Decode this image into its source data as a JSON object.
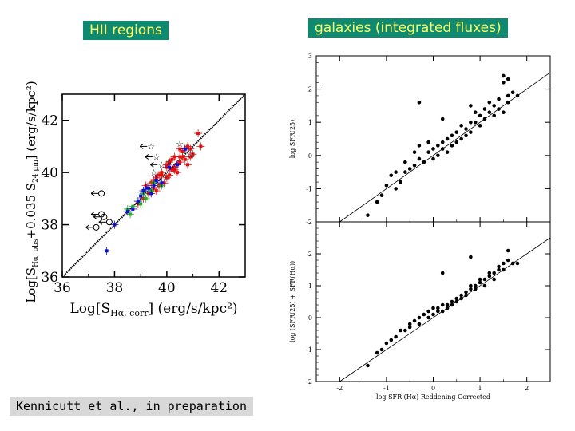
{
  "labels": {
    "hii": "HII regions",
    "galaxies": "galaxies (integrated fluxes)",
    "credit": "Kennicutt et al., in preparation"
  },
  "colors": {
    "label_bg": "#0e8a70",
    "label_text": "#ffff66",
    "credit_bg": "#d8d8d8",
    "red": "#e01010",
    "green": "#20b020",
    "blue": "#1010c0"
  },
  "chart_data": [
    {
      "type": "scatter",
      "title": "",
      "xlabel": "Log[S",
      "xlabel_sub": "Hα, corr",
      "xlabel_units": "] (erg/s/kpc²)",
      "ylabel": "Log[S",
      "ylabel_sub1": "Hα, obs",
      "ylabel_mid": "+0.035 S",
      "ylabel_sub2": "24 μm",
      "ylabel_units": "] (erg/s/kpc²)",
      "xlim": [
        36,
        43
      ],
      "ylim": [
        36,
        43
      ],
      "xticks": [
        "36",
        "38",
        "40",
        "42"
      ],
      "yticks": [
        "36",
        "38",
        "40",
        "42"
      ],
      "line": {
        "x": [
          36,
          43
        ],
        "y": [
          36,
          43
        ]
      },
      "series": [
        {
          "color": "red",
          "x": [
            40.5,
            40.3,
            40.7,
            40.0,
            39.8,
            40.6,
            41.0,
            40.2,
            39.6,
            40.9,
            40.4,
            39.5,
            40.8,
            40.1,
            39.9,
            40.5,
            41.2,
            39.7,
            40.3,
            40.6,
            39.4,
            40.0,
            40.7,
            39.2,
            40.4,
            39.8,
            40.9,
            39.6,
            40.2,
            39.3,
            40.5,
            41.3,
            39.1,
            40.8,
            39.7,
            40.1,
            38.9,
            40.3,
            39.5,
            40.0
          ],
          "y": [
            40.6,
            40.2,
            40.5,
            40.3,
            39.9,
            40.8,
            40.7,
            40.5,
            39.8,
            40.9,
            40.0,
            39.4,
            41.0,
            40.4,
            39.6,
            40.4,
            41.5,
            39.9,
            40.1,
            40.6,
            39.6,
            39.8,
            40.9,
            39.5,
            40.3,
            40.0,
            40.6,
            39.3,
            40.1,
            39.2,
            40.9,
            41.0,
            39.0,
            40.3,
            39.5,
            39.9,
            38.8,
            40.6,
            39.7,
            40.2
          ]
        },
        {
          "color": "green",
          "x": [
            38.9,
            39.2,
            39.5,
            38.7,
            39.0,
            39.8,
            38.5,
            39.4,
            39.1,
            38.6
          ],
          "y": [
            38.9,
            39.0,
            39.6,
            38.7,
            38.8,
            39.5,
            38.6,
            39.3,
            39.2,
            38.4
          ]
        },
        {
          "color": "blue",
          "x": [
            37.7,
            38.0,
            38.5,
            38.9,
            39.1,
            39.3,
            39.5,
            39.6,
            39.8,
            40.1,
            40.4,
            39.4,
            39.0,
            38.7,
            39.2,
            40.7
          ],
          "y": [
            37.0,
            38.0,
            38.5,
            38.9,
            39.3,
            39.4,
            39.5,
            39.7,
            39.6,
            40.2,
            40.3,
            39.2,
            39.1,
            38.6,
            39.4,
            40.9
          ]
        }
      ],
      "star_markers": {
        "x": [
          39.4,
          39.6,
          39.8,
          39.5,
          40.1,
          40.9,
          40.5
        ],
        "y": [
          41.0,
          40.6,
          40.3,
          40.0,
          40.4,
          40.7,
          41.1
        ]
      },
      "circle_markers": {
        "x": [
          37.5,
          37.6,
          37.8,
          37.5,
          37.3
        ],
        "y": [
          39.2,
          38.3,
          38.1,
          38.4,
          37.9
        ]
      }
    },
    {
      "type": "scatter",
      "title": "",
      "ylabel": "log SFR(25)",
      "xlim": [
        -2.5,
        2.5
      ],
      "ylim": [
        -2,
        3
      ],
      "xticks": [
        "-2",
        "-1",
        "0",
        "1",
        "2"
      ],
      "yticks": [
        "-2",
        "-1",
        "0",
        "1",
        "2",
        "3"
      ],
      "line": {
        "x": [
          -2.5,
          2.5
        ],
        "y": [
          -2.5,
          2.5
        ]
      },
      "x": [
        -1.4,
        -1.2,
        -1.1,
        -1.0,
        -0.9,
        -0.8,
        -0.8,
        -0.7,
        -0.6,
        -0.6,
        -0.5,
        -0.4,
        -0.4,
        -0.3,
        -0.3,
        -0.2,
        -0.1,
        -0.1,
        0.0,
        0.0,
        0.1,
        0.1,
        0.2,
        0.2,
        0.3,
        0.3,
        0.4,
        0.4,
        0.5,
        0.5,
        0.6,
        0.6,
        0.7,
        0.7,
        0.8,
        0.8,
        0.9,
        0.9,
        1.0,
        1.0,
        1.1,
        1.1,
        1.2,
        1.2,
        1.3,
        1.3,
        1.4,
        1.4,
        1.5,
        1.5,
        1.6,
        1.6,
        1.7,
        1.8,
        -0.3,
        0.2,
        0.8,
        1.5,
        1.6
      ],
      "y": [
        -1.8,
        -1.4,
        -1.2,
        -0.9,
        -0.6,
        -1.0,
        -0.5,
        -0.8,
        -0.5,
        -0.2,
        -0.4,
        -0.3,
        0.1,
        -0.1,
        0.3,
        -0.2,
        0.1,
        0.4,
        0.2,
        -0.1,
        0.3,
        0.0,
        0.4,
        0.2,
        0.5,
        0.1,
        0.6,
        0.3,
        0.7,
        0.4,
        0.5,
        0.9,
        0.8,
        0.6,
        1.0,
        0.7,
        1.0,
        1.3,
        1.2,
        0.9,
        1.4,
        1.1,
        1.3,
        1.6,
        1.5,
        1.2,
        1.7,
        1.4,
        2.2,
        1.3,
        1.8,
        1.6,
        1.9,
        1.8,
        1.6,
        1.1,
        1.5,
        2.4,
        2.3
      ]
    },
    {
      "type": "scatter",
      "title": "",
      "ylabel": "log (SFR(25) + SFR(Hα))",
      "xlabel": "log SFR (Hα) Reddening Corrected",
      "xlim": [
        -2.5,
        2.5
      ],
      "ylim": [
        -2,
        3
      ],
      "xticks": [
        "-2",
        "-1",
        "0",
        "1",
        "2"
      ],
      "yticks": [
        "-2",
        "-1",
        "0",
        "1",
        "2"
      ],
      "line": {
        "x": [
          -2.5,
          2.5
        ],
        "y": [
          -2.5,
          2.5
        ]
      },
      "x": [
        -1.4,
        -1.2,
        -1.1,
        -1.0,
        -0.9,
        -0.8,
        -0.7,
        -0.6,
        -0.5,
        -0.5,
        -0.4,
        -0.3,
        -0.3,
        -0.2,
        -0.1,
        -0.1,
        0.0,
        0.0,
        0.1,
        0.1,
        0.2,
        0.2,
        0.3,
        0.3,
        0.4,
        0.4,
        0.5,
        0.5,
        0.6,
        0.6,
        0.7,
        0.7,
        0.8,
        0.8,
        0.9,
        0.9,
        1.0,
        1.0,
        1.1,
        1.1,
        1.2,
        1.2,
        1.3,
        1.3,
        1.4,
        1.4,
        1.5,
        1.5,
        1.6,
        1.6,
        1.7,
        1.8,
        0.2,
        0.8
      ],
      "y": [
        -1.5,
        -1.1,
        -1.0,
        -0.8,
        -0.7,
        -0.6,
        -0.4,
        -0.4,
        -0.2,
        -0.3,
        -0.1,
        0.0,
        -0.2,
        0.1,
        0.0,
        0.2,
        0.1,
        0.3,
        0.2,
        0.3,
        0.4,
        0.2,
        0.4,
        0.3,
        0.5,
        0.4,
        0.6,
        0.5,
        0.7,
        0.6,
        0.8,
        0.7,
        0.9,
        1.0,
        1.0,
        0.9,
        1.1,
        1.2,
        1.2,
        1.0,
        1.3,
        1.4,
        1.4,
        1.2,
        1.5,
        1.6,
        1.7,
        1.5,
        1.8,
        2.1,
        1.7,
        1.7,
        1.4,
        1.9
      ]
    }
  ]
}
